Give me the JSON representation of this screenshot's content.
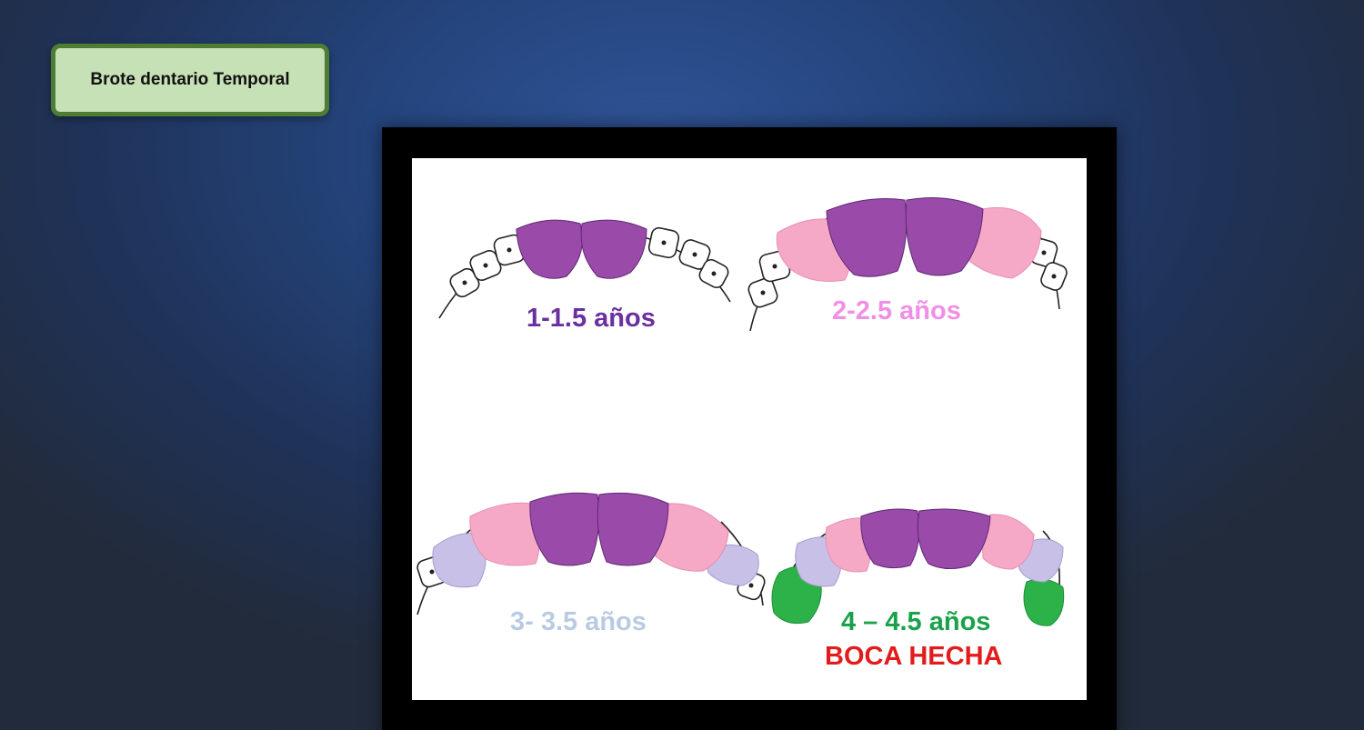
{
  "header": {
    "title": "Brote dentario Temporal"
  },
  "diagram": {
    "stages": [
      {
        "label": "1-1.5 años",
        "color": "#6b2fa0"
      },
      {
        "label": "2-2.5 años",
        "color": "#f08fe8"
      },
      {
        "label": "3- 3.5 años",
        "color": "#b9cbe2"
      },
      {
        "label": "4 – 4.5 años",
        "color": "#19a24a"
      }
    ],
    "note": {
      "label": "BOCA HECHA",
      "color": "#e21c1c"
    },
    "tooth_colors": {
      "central_incisor": "#9a4aa8",
      "lateral_incisor": "#f6a9c6",
      "first_molar": "#c8c0e6",
      "canine_second_molar": "#2db24a",
      "outline": "#222222"
    }
  }
}
